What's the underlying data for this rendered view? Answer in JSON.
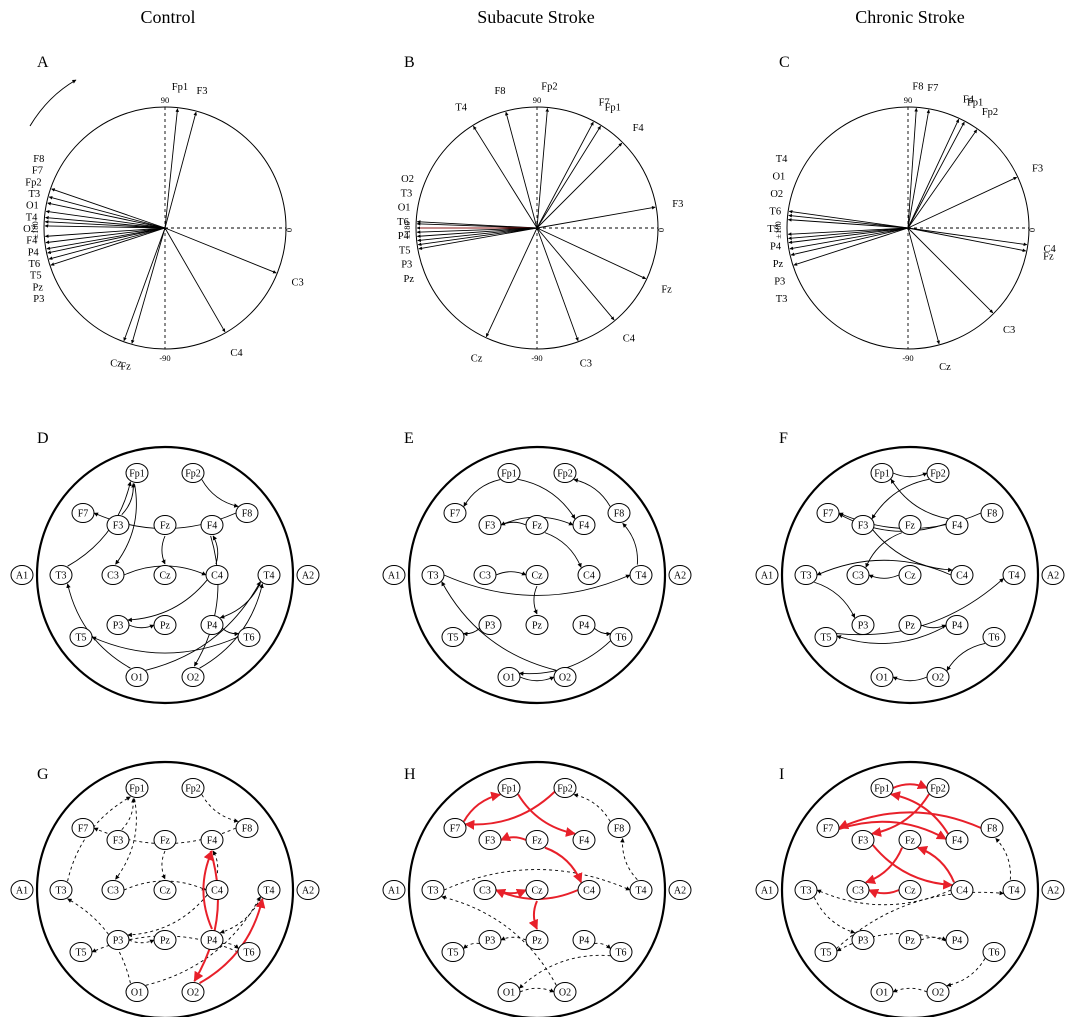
{
  "columns": [
    "Control",
    "Subacute Stroke",
    "Chronic Stroke"
  ],
  "panel_labels": [
    "A",
    "B",
    "C",
    "D",
    "E",
    "F",
    "G",
    "H",
    "I"
  ],
  "phase_ticks": {
    "top": "90",
    "right": "0",
    "bottom": "-90",
    "left": "±180"
  },
  "polar": [
    {
      "id": "A",
      "vectors": [
        {
          "label": "Fp1",
          "angle": 84
        },
        {
          "label": "F3",
          "angle": 75
        },
        {
          "label": "F8",
          "angle": 161
        },
        {
          "label": "F7",
          "angle": 165
        },
        {
          "label": "Fp2",
          "angle": 168
        },
        {
          "label": "T3",
          "angle": 172
        },
        {
          "label": "O1",
          "angle": 175
        },
        {
          "label": "T4",
          "angle": 177
        },
        {
          "label": "O2",
          "angle": 179
        },
        {
          "label": "F4",
          "angle": -176
        },
        {
          "label": "P4",
          "angle": -173
        },
        {
          "label": "T6",
          "angle": -170
        },
        {
          "label": "T5",
          "angle": -168
        },
        {
          "label": "Pz",
          "angle": -165
        },
        {
          "label": "P3",
          "angle": -162
        },
        {
          "label": "C3",
          "angle": -22
        },
        {
          "label": "C4",
          "angle": -60
        },
        {
          "label": "Cz",
          "angle": -110
        },
        {
          "label": "Fz",
          "angle": -106
        }
      ]
    },
    {
      "id": "B",
      "vectors": [
        {
          "label": "Fp2",
          "angle": 85
        },
        {
          "label": "F7",
          "angle": 62
        },
        {
          "label": "Fp1",
          "angle": 58
        },
        {
          "label": "F8",
          "angle": 105
        },
        {
          "label": "T4",
          "angle": 122
        },
        {
          "label": "F4",
          "angle": 45
        },
        {
          "label": "F3",
          "angle": 10
        },
        {
          "label": "T3",
          "angle": 178
        },
        {
          "label": "O2",
          "angle": 177
        },
        {
          "label": "O1",
          "angle": 180
        },
        {
          "label": "T6",
          "angle": -178
        },
        {
          "label": "P4",
          "angle": -176
        },
        {
          "label": "T5",
          "angle": -174
        },
        {
          "label": "P3",
          "angle": -172
        },
        {
          "label": "Pz",
          "angle": -170
        },
        {
          "label": "Fz",
          "angle": -25
        },
        {
          "label": "C4",
          "angle": -50
        },
        {
          "label": "C3",
          "angle": -70
        },
        {
          "label": "Cz",
          "angle": -115
        }
      ]
    },
    {
      "id": "C",
      "vectors": [
        {
          "label": "F8",
          "angle": 86
        },
        {
          "label": "F7",
          "angle": 80
        },
        {
          "label": "F4",
          "angle": 65
        },
        {
          "label": "Fp1",
          "angle": 62
        },
        {
          "label": "Fp2",
          "angle": 55
        },
        {
          "label": "F3",
          "angle": 25
        },
        {
          "label": "T4",
          "angle": 172
        },
        {
          "label": "O1",
          "angle": 174
        },
        {
          "label": "O2",
          "angle": 176
        },
        {
          "label": "T6",
          "angle": -177
        },
        {
          "label": "T5",
          "angle": -175
        },
        {
          "label": "P4",
          "angle": -173
        },
        {
          "label": "Pz",
          "angle": -170
        },
        {
          "label": "P3",
          "angle": -167
        },
        {
          "label": "T3",
          "angle": -162
        },
        {
          "label": "C4",
          "angle": -8
        },
        {
          "label": "Fz",
          "angle": -11
        },
        {
          "label": "C3",
          "angle": -45
        },
        {
          "label": "Cz",
          "angle": -75
        }
      ]
    }
  ],
  "head_nodes": [
    "Fp1",
    "Fp2",
    "F7",
    "F3",
    "Fz",
    "F4",
    "F8",
    "A1",
    "T3",
    "C3",
    "Cz",
    "C4",
    "T4",
    "A2",
    "T5",
    "P3",
    "Pz",
    "P4",
    "T6",
    "O1",
    "O2"
  ],
  "colors": {
    "ink": "#000000",
    "highlight": "#e8202a",
    "phase_line": "#8b1a1a"
  }
}
